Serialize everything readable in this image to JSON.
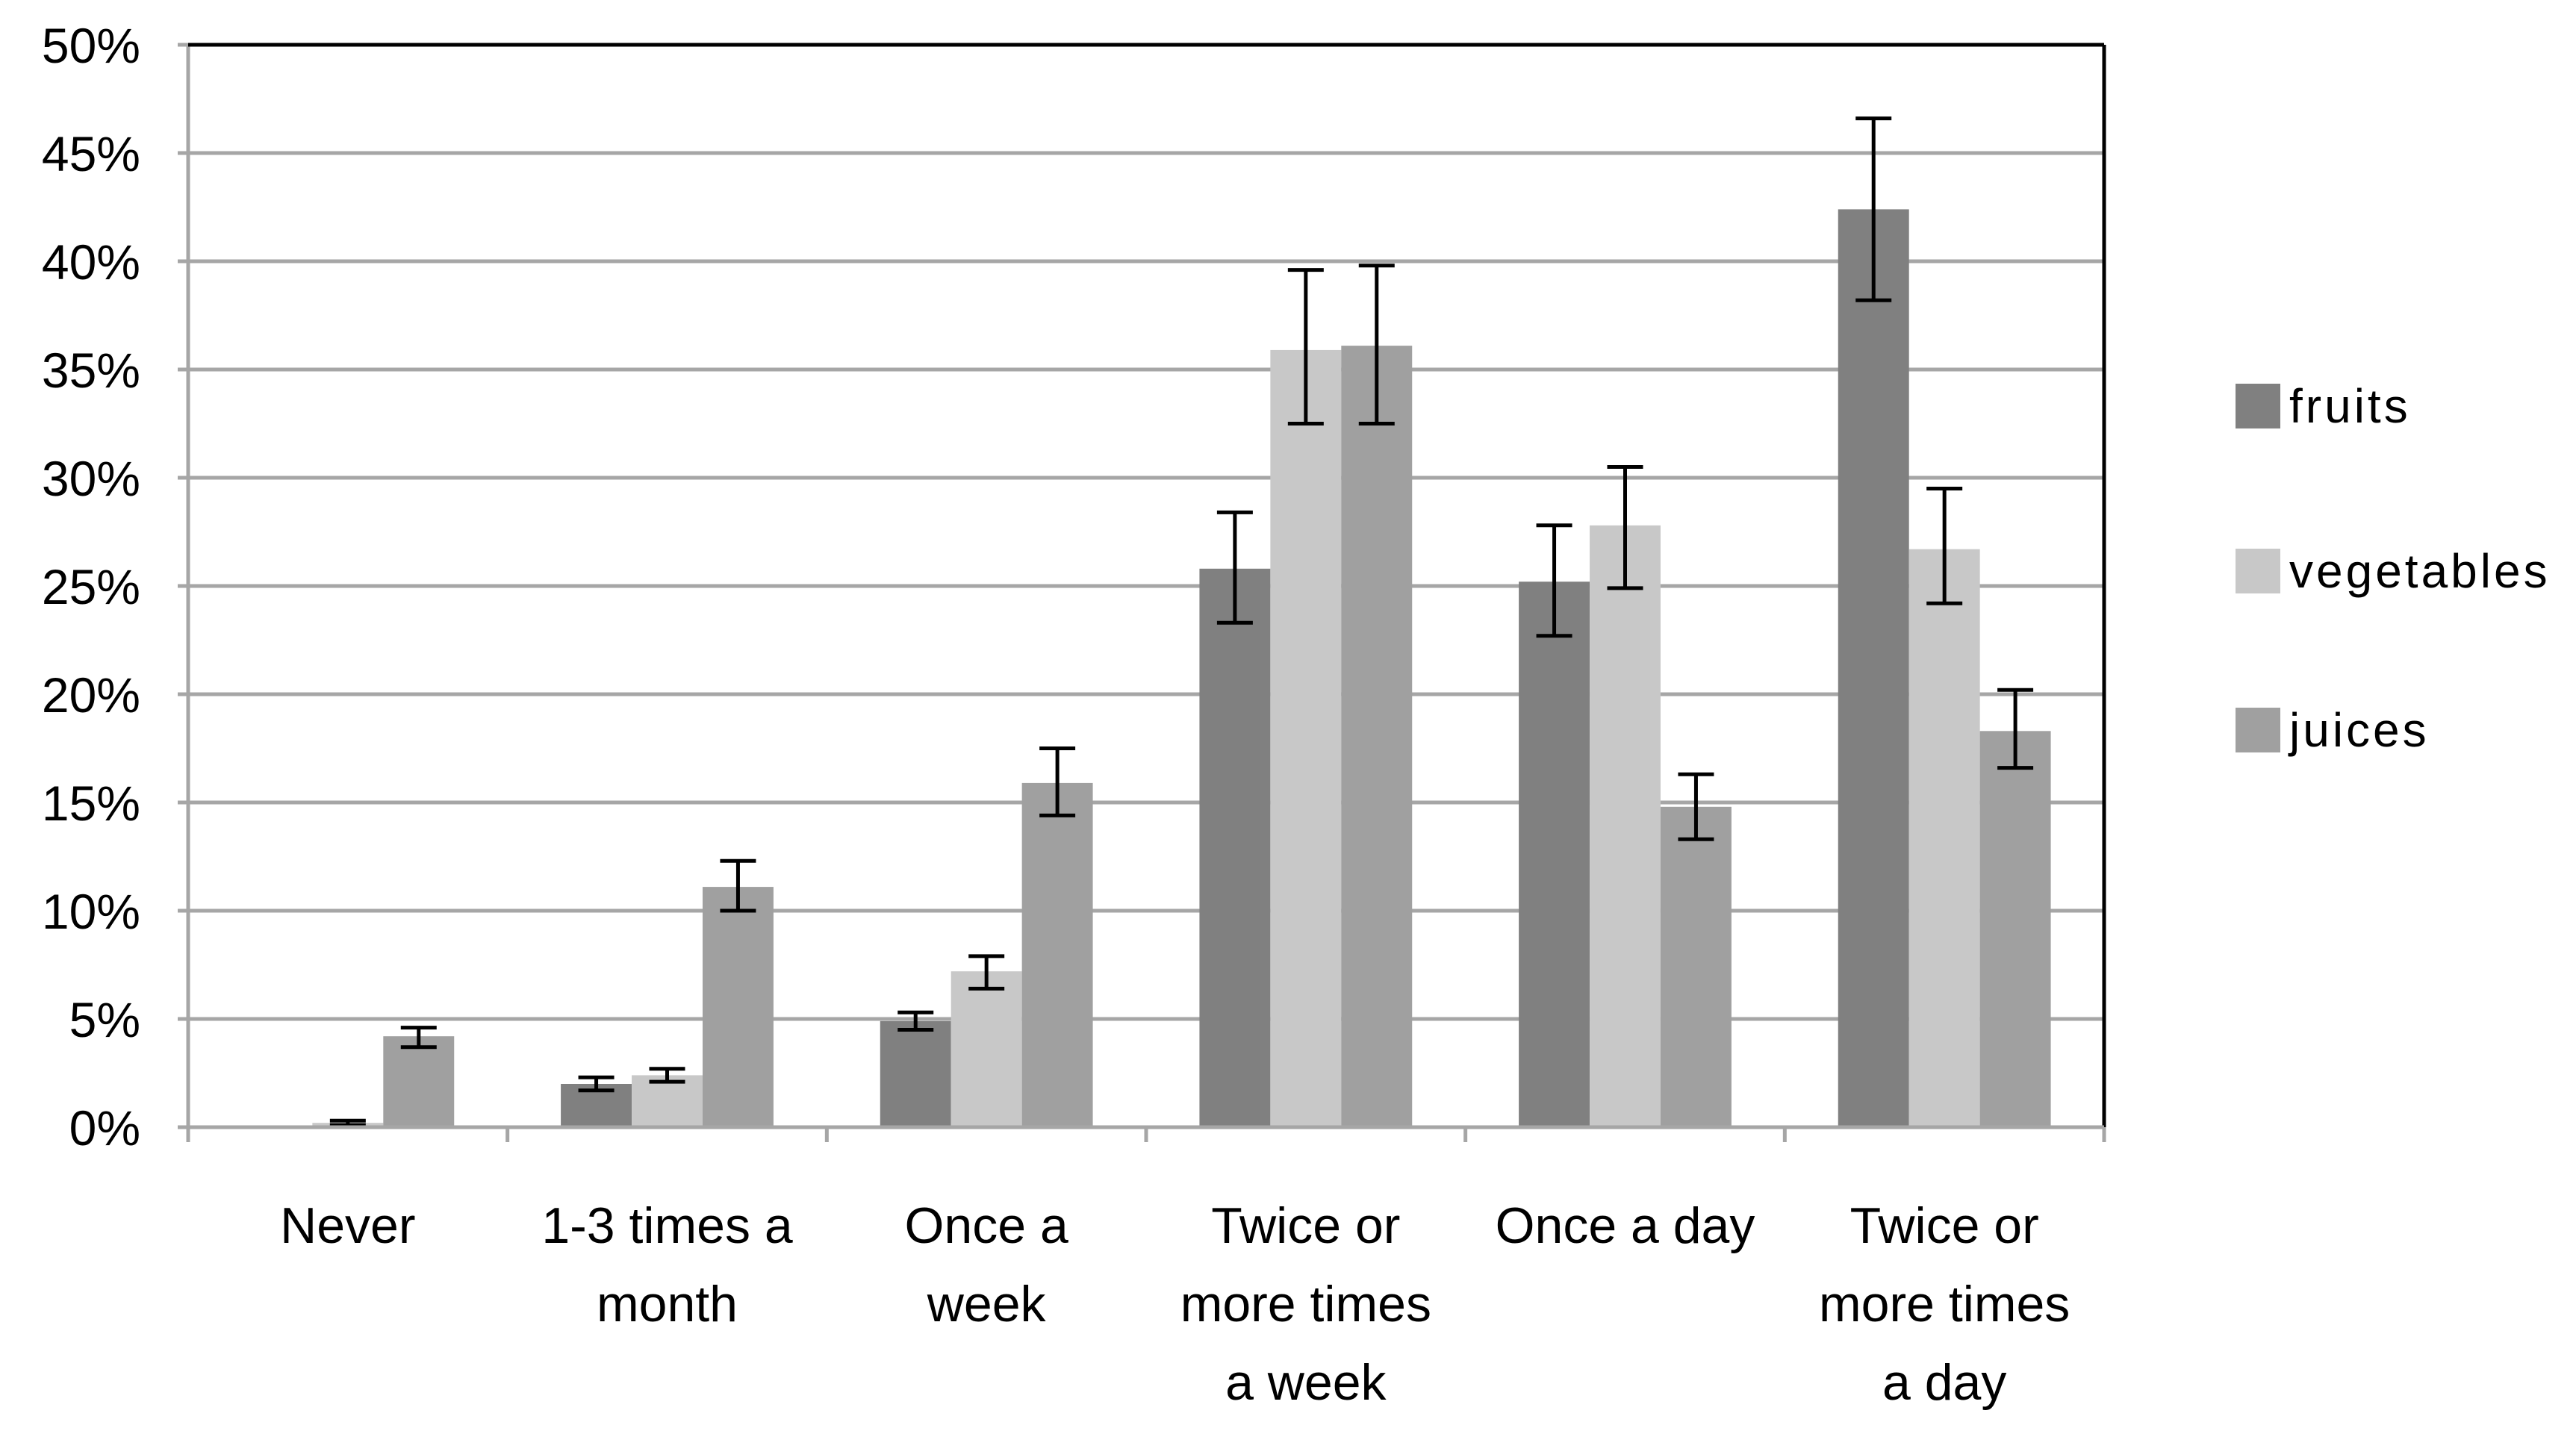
{
  "chart_data": {
    "type": "bar",
    "title": "",
    "xlabel": "",
    "ylabel": "",
    "ylim": [
      0,
      50
    ],
    "y_ticks": [
      "0%",
      "5%",
      "10%",
      "15%",
      "20%",
      "25%",
      "30%",
      "35%",
      "40%",
      "45%",
      "50%"
    ],
    "grid": true,
    "legend_position": "right",
    "categories": [
      [
        "Never"
      ],
      [
        "1-3 times a",
        "month"
      ],
      [
        "Once a",
        "week"
      ],
      [
        "Twice or",
        "more times",
        "a week"
      ],
      [
        "Once a day"
      ],
      [
        "Twice or",
        "more times",
        "a day"
      ]
    ],
    "series": [
      {
        "name": "fruits",
        "color": "#808080",
        "values": [
          0,
          2.0,
          4.9,
          25.8,
          25.2,
          42.4
        ],
        "err_low": [
          0,
          1.7,
          4.5,
          23.3,
          22.7,
          38.2
        ],
        "err_high": [
          0,
          2.3,
          5.3,
          28.4,
          27.8,
          46.6
        ]
      },
      {
        "name": "vegetables",
        "color": "#C8C8C8",
        "values": [
          0.2,
          2.4,
          7.2,
          35.9,
          27.8,
          26.7
        ],
        "err_low": [
          0.1,
          2.1,
          6.4,
          32.5,
          24.9,
          24.2
        ],
        "err_high": [
          0.3,
          2.7,
          7.9,
          39.6,
          30.5,
          29.5
        ]
      },
      {
        "name": "juices",
        "color": "#A0A0A0",
        "values": [
          4.2,
          11.1,
          15.9,
          36.1,
          14.8,
          18.3
        ],
        "err_low": [
          3.7,
          10.0,
          14.4,
          32.5,
          13.3,
          16.6
        ],
        "err_high": [
          4.6,
          12.3,
          17.5,
          39.8,
          16.3,
          20.2
        ]
      }
    ]
  }
}
